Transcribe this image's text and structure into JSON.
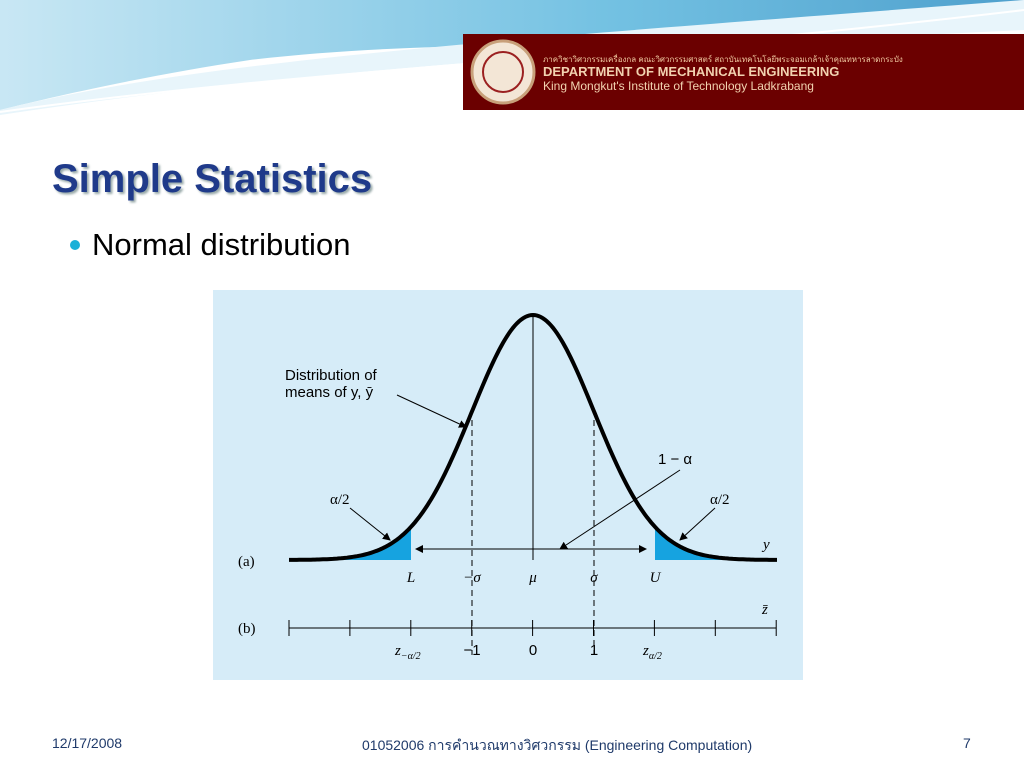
{
  "header": {
    "thai_line": "ภาควิชาวิศวกรรมเครื่องกล คณะวิศวกรรมศาสตร์ สถาบันเทคโนโลยีพระจอมเกล้าเจ้าคุณทหารลาดกระบัง",
    "department": "DEPARTMENT OF MECHANICAL ENGINEERING",
    "institute": "King Mongkut's Institute of Technology Ladkrabang"
  },
  "title": "Simple Statistics",
  "bullet": "Normal distribution",
  "figure": {
    "dist_line1": "Distribution of",
    "dist_line2": "means of y, ȳ",
    "one_minus_alpha": "1 − α",
    "alpha_left": "α/2",
    "alpha_right": "α/2",
    "y_axis": "y",
    "part_a": "(a)",
    "part_b": "(b)",
    "z_axis": "z̄",
    "a_labels": [
      "L",
      "−σ",
      "μ",
      "σ",
      "U"
    ],
    "z_lower": {
      "base": "z",
      "sub": "−α/2"
    },
    "b_labels": [
      "−1",
      "0",
      "1"
    ],
    "z_upper": {
      "base": "z",
      "sub": "α/2"
    }
  },
  "footer": {
    "date": "12/17/2008",
    "course": "01052006 การคำนวณทางวิศวกรรม (Engineering Computation)",
    "page": "7"
  }
}
